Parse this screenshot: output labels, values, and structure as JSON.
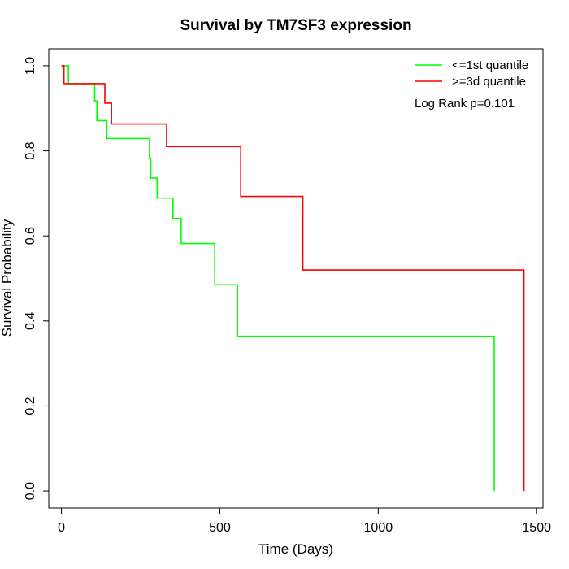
{
  "chart_data": {
    "type": "line",
    "title": "Survival by TM7SF3 expression",
    "xlabel": "Time (Days)",
    "ylabel": "Survival Probability",
    "xlim": [
      -40,
      1520
    ],
    "ylim": [
      -0.04,
      1.04
    ],
    "x_ticks": [
      0,
      500,
      1000,
      1500
    ],
    "x_tick_labels": [
      "0",
      "500",
      "1000",
      "1500"
    ],
    "y_ticks": [
      0.0,
      0.2,
      0.4,
      0.6,
      0.8,
      1.0
    ],
    "y_tick_labels": [
      "0.0",
      "0.2",
      "0.4",
      "0.6",
      "0.8",
      "1.0"
    ],
    "grid": false,
    "legend_position": "top-right",
    "annotation": "Log Rank p=0.101",
    "series": [
      {
        "name": "<=1st quantile",
        "color": "#00ff00",
        "steps": [
          [
            0,
            1.0
          ],
          [
            22,
            0.958
          ],
          [
            105,
            0.917
          ],
          [
            112,
            0.871
          ],
          [
            143,
            0.829
          ],
          [
            278,
            0.783
          ],
          [
            282,
            0.736
          ],
          [
            302,
            0.689
          ],
          [
            352,
            0.641
          ],
          [
            378,
            0.582
          ],
          [
            484,
            0.485
          ],
          [
            556,
            0.364
          ],
          [
            1366,
            0.0
          ]
        ]
      },
      {
        "name": ">=3d quantile",
        "color": "#ff0000",
        "steps": [
          [
            0,
            1.0
          ],
          [
            8,
            0.958
          ],
          [
            137,
            0.912
          ],
          [
            158,
            0.863
          ],
          [
            332,
            0.81
          ],
          [
            566,
            0.693
          ],
          [
            762,
            0.52
          ],
          [
            1460,
            0.0
          ]
        ]
      }
    ]
  }
}
